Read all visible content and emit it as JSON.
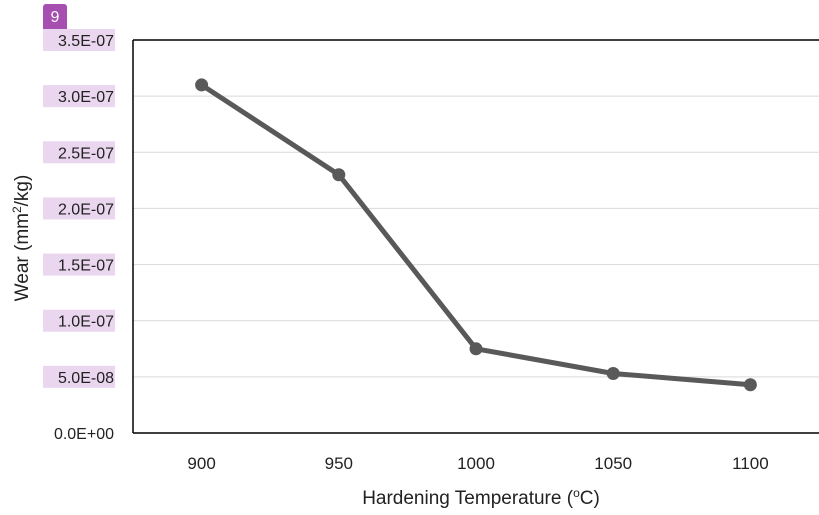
{
  "figure_marker": "9",
  "chart_data": {
    "type": "line",
    "xlabel": "Hardening Temperature (",
    "xlabel_sup": "o",
    "xlabel_tail": "C)",
    "ylabel": "Wear (mm",
    "ylabel_sup": "2",
    "ylabel_tail": "/kg)",
    "categories": [
      "900",
      "950",
      "1000",
      "1050",
      "1100"
    ],
    "series": [
      {
        "values": [
          3.1e-07,
          2.3e-07,
          7.5e-08,
          5.3e-08,
          4.3e-08
        ]
      }
    ],
    "ylim": [
      0,
      3.5e-07
    ],
    "yticks": [
      0,
      5e-08,
      1e-07,
      1.5e-07,
      2e-07,
      2.5e-07,
      3e-07,
      3.5e-07
    ],
    "ytick_labels": [
      "0.0E+00",
      "5.0E-08",
      "1.0E-07",
      "1.5E-07",
      "2.0E-07",
      "2.5E-07",
      "3.0E-07",
      "3.5E-07"
    ],
    "grid": true,
    "line_color": "#595959",
    "grid_color": "#d9d9d9",
    "label_highlight_color": "#ead6ef"
  }
}
